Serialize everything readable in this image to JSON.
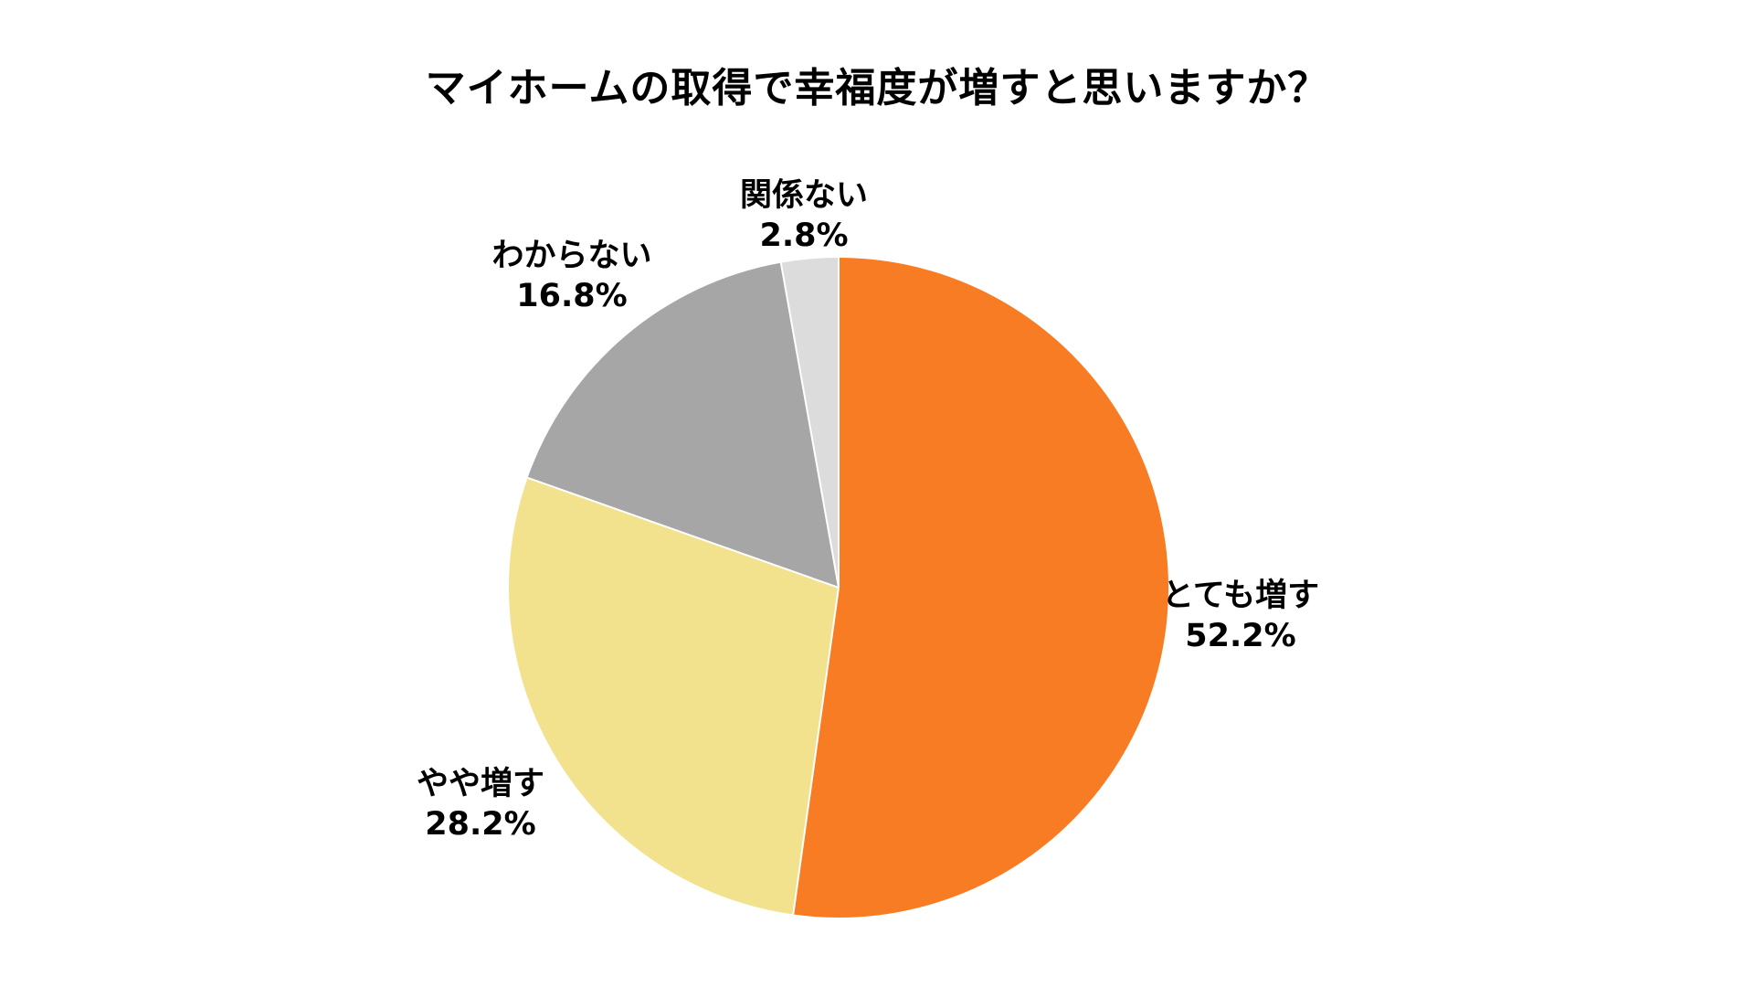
{
  "page": {
    "background_color": "#FFFFFF",
    "text_color": "#000000"
  },
  "chart_data": {
    "type": "pie",
    "title": "マイホームの取得で幸福度が増すと思いますか？",
    "direction": "clockwise",
    "start_angle": "12-oclock",
    "labels_position": "outside",
    "legend": "none",
    "separator_color": "#FFFFFF",
    "slices": [
      {
        "label": "とても増す",
        "value": 52.2,
        "pct_label": "52.2%",
        "color": "#F87C23"
      },
      {
        "label": "やや増す",
        "value": 28.2,
        "pct_label": "28.2%",
        "color": "#F2E28E"
      },
      {
        "label": "わからない",
        "value": 16.8,
        "pct_label": "16.8%",
        "color": "#A6A6A6"
      },
      {
        "label": "関係ない",
        "value": 2.8,
        "pct_label": "2.8%",
        "color": "#DCDCDC"
      }
    ]
  }
}
